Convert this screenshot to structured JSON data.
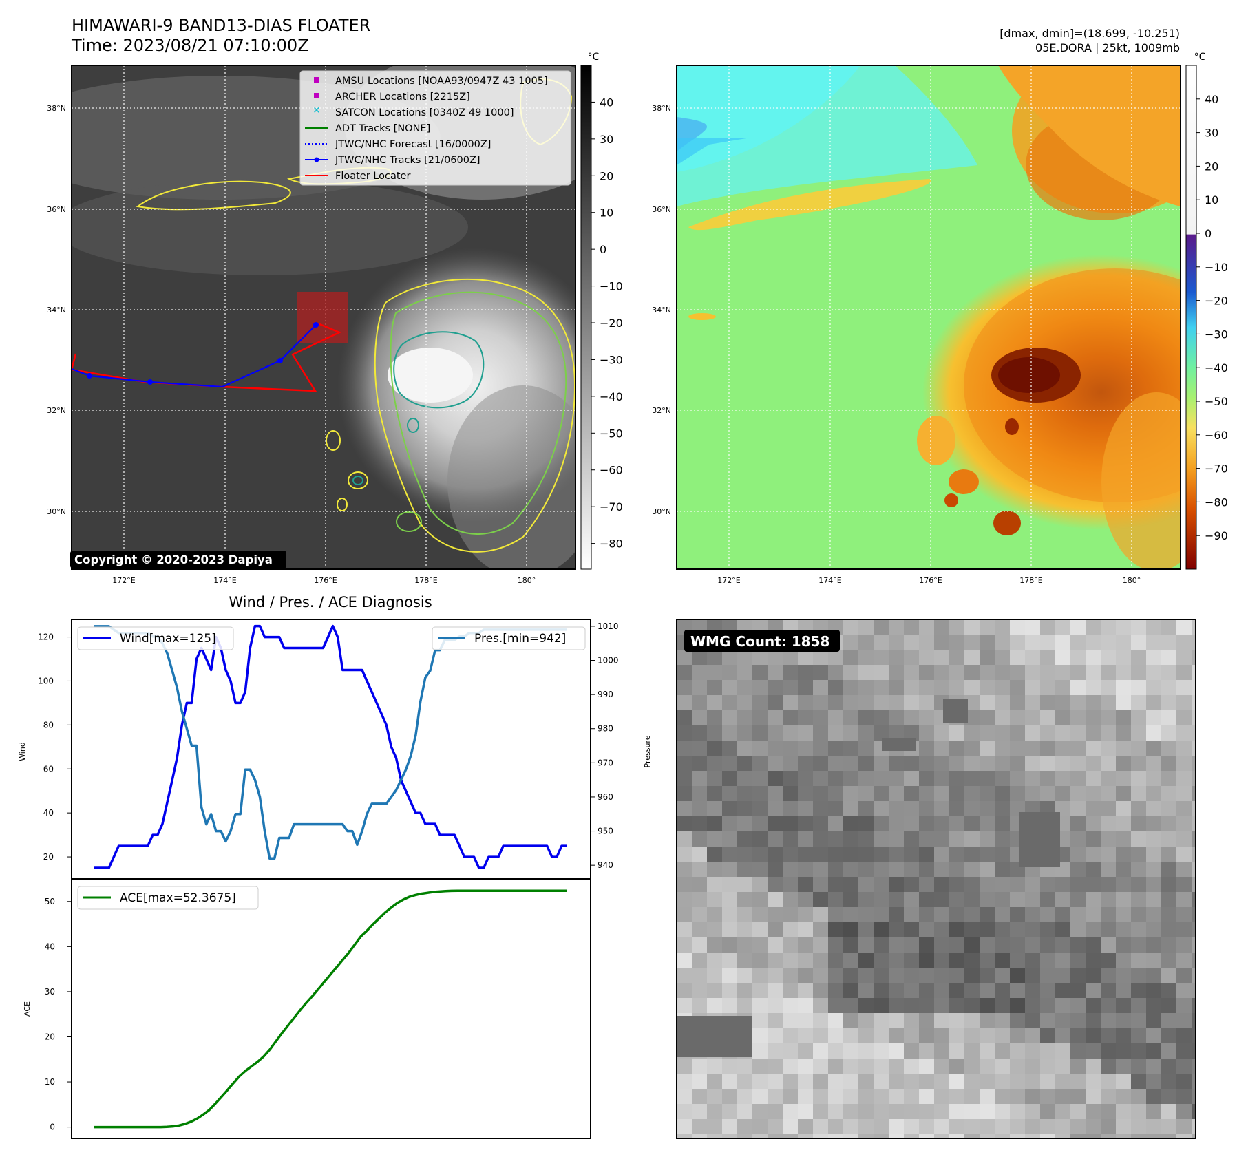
{
  "header": {
    "title_line1": "HIMAWARI-9 BAND13-DIAS FLOATER",
    "title_line2": "Time: 2023/08/21 07:10:00Z",
    "right_line1": "[dmax, dmin]=(18.699, -10.251)",
    "right_line2": "05E.DORA | 25kt, 1009mb"
  },
  "map_axes": {
    "lat_labels": [
      "38°N",
      "36°N",
      "34°N",
      "32°N",
      "30°N"
    ],
    "lon_labels": [
      "172°E",
      "174°E",
      "176°E",
      "178°E",
      "180°"
    ]
  },
  "legend_items": [
    {
      "label": "AMSU Locations [NOAA93/0947Z 43 1005]",
      "color": "#c000c0",
      "marker": "square"
    },
    {
      "label": "ARCHER Locations [2215Z]",
      "color": "#c000c0",
      "marker": "square"
    },
    {
      "label": "SATCON Locations [0340Z 49 1000]",
      "color": "#17becf",
      "marker": "x"
    },
    {
      "label": "ADT Tracks [NONE]",
      "color": "#008000",
      "marker": "line"
    },
    {
      "label": "JTWC/NHC Forecast [16/0000Z]",
      "color": "#0000ff",
      "marker": "dotted"
    },
    {
      "label": "JTWC/NHC Tracks [21/0600Z]",
      "color": "#0000ff",
      "marker": "line-dot"
    },
    {
      "label": "Floater Locater",
      "color": "#ff0000",
      "marker": "line"
    }
  ],
  "copyright": "Copyright © 2020-2023 Dapiya",
  "colorbar_gray": {
    "unit": "°C",
    "ticks": [
      "40",
      "30",
      "20",
      "10",
      "0",
      "−10",
      "−20",
      "−30",
      "−40",
      "−50",
      "−60",
      "−70",
      "−80"
    ]
  },
  "colorbar_color": {
    "unit": "°C",
    "ticks": [
      "40",
      "30",
      "20",
      "10",
      "0",
      "−10",
      "−20",
      "−30",
      "−40",
      "−50",
      "−60",
      "−70",
      "−80",
      "−90"
    ]
  },
  "wmg_label": "WMG Count: 1858",
  "chart_data": [
    {
      "type": "line",
      "title": "Wind / Pres. / ACE Diagnosis",
      "ylabel": "Wind",
      "ylabel_right": "Pressure",
      "ylim": [
        10,
        128
      ],
      "ylim_right": [
        936,
        1012
      ],
      "yticks": [
        20,
        40,
        60,
        80,
        100,
        120
      ],
      "yticks_right": [
        940,
        950,
        960,
        970,
        980,
        990,
        1000,
        1010
      ],
      "legend": "top-left / top-right",
      "series": [
        {
          "name": "Wind[max=125]",
          "color": "#0000ee",
          "axis": "left",
          "values": [
            15,
            15,
            15,
            15,
            20,
            25,
            25,
            25,
            25,
            25,
            25,
            25,
            30,
            30,
            35,
            45,
            55,
            65,
            80,
            90,
            90,
            110,
            115,
            110,
            105,
            120,
            115,
            105,
            100,
            90,
            90,
            95,
            115,
            125,
            125,
            120,
            120,
            120,
            120,
            115,
            115,
            115,
            115,
            115,
            115,
            115,
            115,
            115,
            120,
            125,
            120,
            105,
            105,
            105,
            105,
            105,
            100,
            95,
            90,
            85,
            80,
            70,
            65,
            55,
            50,
            45,
            40,
            40,
            35,
            35,
            35,
            30,
            30,
            30,
            30,
            25,
            20,
            20,
            20,
            15,
            15,
            20,
            20,
            20,
            25,
            25,
            25,
            25,
            25,
            25,
            25,
            25,
            25,
            25,
            20,
            20,
            25,
            25
          ]
        },
        {
          "name": "Pres.[min=942]",
          "color": "#1f77b4",
          "axis": "right",
          "values": [
            1010,
            1010,
            1010,
            1010,
            1009,
            1008,
            1008,
            1008,
            1008,
            1008,
            1008,
            1008,
            1007,
            1007,
            1005,
            1002,
            997,
            992,
            985,
            980,
            975,
            975,
            957,
            952,
            955,
            950,
            950,
            947,
            950,
            955,
            955,
            968,
            968,
            965,
            960,
            950,
            942,
            942,
            948,
            948,
            948,
            952,
            952,
            952,
            952,
            952,
            952,
            952,
            952,
            952,
            952,
            952,
            950,
            950,
            946,
            950,
            955,
            958,
            958,
            958,
            958,
            960,
            962,
            965,
            968,
            972,
            978,
            988,
            995,
            997,
            1003,
            1003,
            1006,
            1006,
            1006,
            1007,
            1007,
            1008,
            1008,
            1008,
            1009,
            1009,
            1009,
            1009,
            1009,
            1009,
            1009,
            1009,
            1009,
            1009,
            1009,
            1009,
            1009,
            1009,
            1009,
            1009,
            1009,
            1009
          ]
        }
      ]
    },
    {
      "type": "line",
      "ylabel": "ACE",
      "ylim": [
        -2.5,
        55
      ],
      "yticks": [
        0,
        10,
        20,
        30,
        40,
        50
      ],
      "legend": "top-left",
      "series": [
        {
          "name": "ACE[max=52.3675]",
          "color": "#008000",
          "values": [
            0,
            0,
            0,
            0,
            0,
            0,
            0,
            0,
            0,
            0,
            0,
            0,
            0.05,
            0.15,
            0.35,
            0.7,
            1.2,
            1.9,
            2.8,
            3.8,
            5.2,
            6.7,
            8.2,
            9.8,
            11.3,
            12.5,
            13.5,
            14.5,
            15.7,
            17.2,
            19,
            20.8,
            22.5,
            24.2,
            25.9,
            27.5,
            29,
            30.6,
            32.2,
            33.8,
            35.4,
            37,
            38.6,
            40.4,
            42.2,
            43.5,
            44.9,
            46.2,
            47.5,
            48.6,
            49.6,
            50.4,
            51,
            51.4,
            51.7,
            51.9,
            52.1,
            52.2,
            52.3,
            52.35,
            52.3675,
            52.3675,
            52.3675,
            52.3675,
            52.3675,
            52.3675,
            52.3675,
            52.3675,
            52.3675,
            52.3675,
            52.3675,
            52.3675,
            52.3675,
            52.3675,
            52.3675,
            52.3675,
            52.3675,
            52.3675,
            52.3675
          ]
        }
      ]
    }
  ]
}
